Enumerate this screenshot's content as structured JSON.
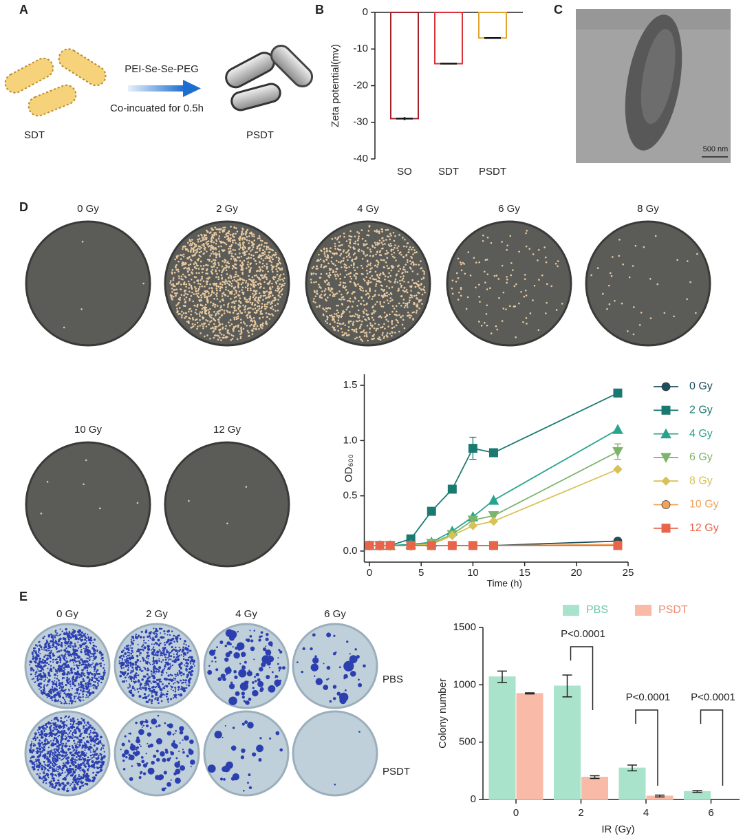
{
  "panels": {
    "labels": [
      "A",
      "B",
      "C",
      "D",
      "E"
    ],
    "a": {
      "reagent": "PEI-Se-Se-PEG",
      "condition": "Co-incuated for 0.5h",
      "before": "SDT",
      "after": "PSDT"
    },
    "c": {
      "scale_bar": "500 nm"
    },
    "d": {
      "plates": [
        "0 Gy",
        "2 Gy",
        "4 Gy",
        "6 Gy",
        "8 Gy",
        "10 Gy",
        "12 Gy"
      ]
    },
    "e": {
      "columns": [
        "0 Gy",
        "2 Gy",
        "4 Gy",
        "6 Gy"
      ],
      "rows": [
        "PBS",
        "PSDT"
      ]
    }
  },
  "chart_data": [
    {
      "type": "bar",
      "ylabel": "Zeta potential(mv)",
      "categories": [
        "SO",
        "SDT",
        "PSDT"
      ],
      "values": [
        -29,
        -14,
        -7
      ],
      "errors": [
        0.4,
        0.2,
        0.2
      ],
      "colors": [
        "#a3222a",
        "#d8323c",
        "#e2a52c"
      ],
      "ylim": [
        -40,
        0
      ],
      "yticks": [
        0,
        -10,
        -20,
        -30,
        -40
      ]
    },
    {
      "type": "line",
      "xlabel": "Time (h)",
      "ylabel": "OD₆₀₀",
      "x": [
        0,
        1,
        2,
        4,
        6,
        8,
        10,
        12,
        24
      ],
      "series": [
        {
          "name": "0 Gy",
          "color": "#1d4f60",
          "marker": "circle",
          "values": [
            0.05,
            0.05,
            0.05,
            0.05,
            0.05,
            0.05,
            0.05,
            0.05,
            0.09
          ]
        },
        {
          "name": "2 Gy",
          "color": "#1a7a72",
          "marker": "square",
          "values": [
            0.05,
            0.05,
            0.05,
            0.11,
            0.36,
            0.56,
            0.93,
            0.89,
            1.43
          ],
          "errors": [
            null,
            null,
            null,
            null,
            null,
            null,
            0.1,
            null,
            null
          ]
        },
        {
          "name": "4 Gy",
          "color": "#2aa38c",
          "marker": "triangle-up",
          "values": [
            0.05,
            0.05,
            0.05,
            0.06,
            0.08,
            0.18,
            0.31,
            0.46,
            1.1
          ]
        },
        {
          "name": "6 Gy",
          "color": "#7db46b",
          "marker": "triangle-down",
          "values": [
            0.05,
            0.05,
            0.05,
            0.05,
            0.07,
            0.15,
            0.28,
            0.32,
            0.9
          ],
          "errors": [
            null,
            null,
            null,
            null,
            null,
            null,
            null,
            null,
            0.07
          ]
        },
        {
          "name": "8 Gy",
          "color": "#d8c257",
          "marker": "diamond",
          "values": [
            0.05,
            0.05,
            0.05,
            0.05,
            0.06,
            0.14,
            0.23,
            0.27,
            0.74
          ]
        },
        {
          "name": "10 Gy",
          "color": "#f0a35a",
          "marker": "circle",
          "values": [
            0.05,
            0.05,
            0.05,
            0.05,
            0.05,
            0.05,
            0.05,
            0.05,
            0.06
          ]
        },
        {
          "name": "12 Gy",
          "color": "#e8644a",
          "marker": "square",
          "values": [
            0.05,
            0.05,
            0.05,
            0.05,
            0.05,
            0.05,
            0.05,
            0.05,
            0.05
          ]
        }
      ],
      "xlim": [
        -0.5,
        25
      ],
      "xticks": [
        0,
        5,
        10,
        15,
        20,
        25
      ],
      "ylim": [
        -0.1,
        1.6
      ],
      "yticks": [
        {
          "value": 0,
          "label": "0.0"
        },
        0.5,
        {
          "value": 1,
          "label": "1.0"
        },
        1.5
      ],
      "legend": "right"
    },
    {
      "type": "bar",
      "xlabel": "IR (Gy)",
      "ylabel": "Colony number",
      "categories": [
        "0",
        "2",
        "4",
        "6"
      ],
      "series": [
        {
          "name": "PBS",
          "color": "#a9e3cb",
          "values": [
            1070,
            990,
            275,
            70
          ],
          "errors": [
            50,
            95,
            25,
            8
          ]
        },
        {
          "name": "PSDT",
          "color": "#f9bba8",
          "values": [
            925,
            195,
            30,
            0
          ],
          "errors": [
            5,
            12,
            8,
            0
          ]
        }
      ],
      "annotations": [
        "P<0.0001",
        "P<0.0001",
        "P<0.0001"
      ],
      "ylim": [
        0,
        1500
      ],
      "yticks": [
        0,
        500,
        1000,
        1500
      ],
      "legend": "top"
    }
  ]
}
